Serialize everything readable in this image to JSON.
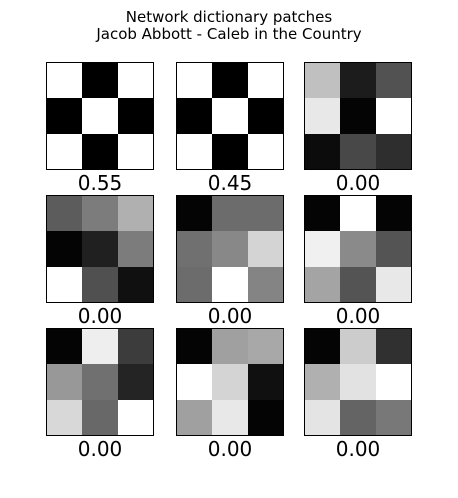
{
  "chart_data": {
    "type": "heatmap",
    "title": "Network dictionary patches",
    "subtitle": "Jacob Abbott - Caleb in the Country",
    "colormap": "gray",
    "panels": [
      {
        "label": "0.55",
        "cells": [
          [
            255,
            0,
            255
          ],
          [
            0,
            255,
            0
          ],
          [
            255,
            0,
            255
          ]
        ]
      },
      {
        "label": "0.45",
        "cells": [
          [
            255,
            0,
            255
          ],
          [
            0,
            255,
            0
          ],
          [
            255,
            0,
            255
          ]
        ]
      },
      {
        "label": "0.00",
        "cells": [
          [
            192,
            28,
            82
          ],
          [
            232,
            4,
            255
          ],
          [
            12,
            72,
            46
          ]
        ]
      },
      {
        "label": "0.00",
        "cells": [
          [
            92,
            124,
            176
          ],
          [
            4,
            32,
            124
          ],
          [
            255,
            80,
            16
          ]
        ]
      },
      {
        "label": "0.00",
        "cells": [
          [
            4,
            108,
            108
          ],
          [
            112,
            136,
            212
          ],
          [
            108,
            255,
            132
          ]
        ]
      },
      {
        "label": "0.00",
        "cells": [
          [
            4,
            255,
            4
          ],
          [
            240,
            138,
            84
          ],
          [
            164,
            84,
            232
          ]
        ]
      },
      {
        "label": "0.00",
        "cells": [
          [
            4,
            238,
            60
          ],
          [
            152,
            112,
            36
          ],
          [
            216,
            104,
            255
          ]
        ]
      },
      {
        "label": "0.00",
        "cells": [
          [
            4,
            160,
            168
          ],
          [
            255,
            212,
            16
          ],
          [
            160,
            232,
            4
          ]
        ]
      },
      {
        "label": "0.00",
        "cells": [
          [
            4,
            204,
            48
          ],
          [
            176,
            226,
            255
          ],
          [
            228,
            100,
            120
          ]
        ]
      }
    ]
  }
}
